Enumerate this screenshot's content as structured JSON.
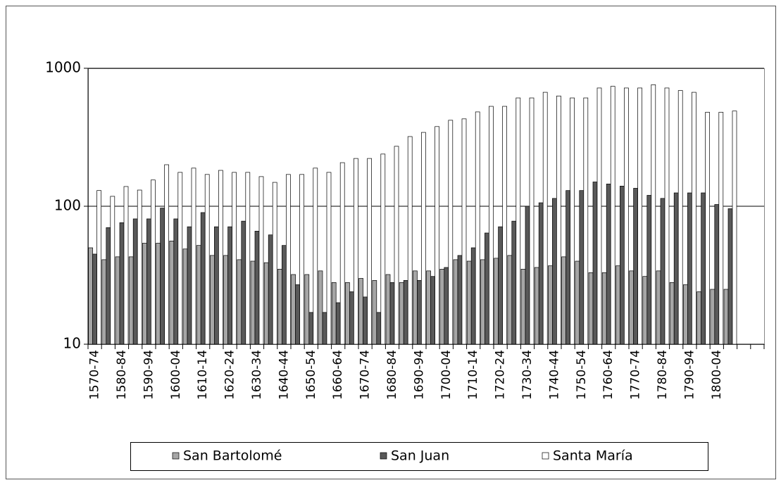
{
  "chart_data": {
    "type": "bar",
    "log_scale": true,
    "grid": true,
    "legend": "bottom",
    "categories": [
      "1570-74",
      null,
      "1580-84",
      null,
      "1590-94",
      null,
      "1600-04",
      null,
      "1610-14",
      null,
      "1620-24",
      null,
      "1630-34",
      null,
      "1640-44",
      null,
      "1650-54",
      null,
      "1660-64",
      null,
      "1670-74",
      null,
      "1680-84",
      null,
      "1690-94",
      null,
      "1700-04",
      null,
      "1710-14",
      null,
      "1720-24",
      null,
      "1730-34",
      null,
      "1740-44",
      null,
      "1750-54",
      null,
      "1760-64",
      null,
      "1770-74",
      null,
      "1780-84",
      null,
      "1790-94",
      null,
      "1800-04",
      null,
      null,
      null
    ],
    "series": [
      {
        "name": "San Bartolomé",
        "color": "#a6a6a6",
        "values": [
          50,
          41,
          43,
          43,
          54,
          54,
          56,
          49,
          52,
          44,
          44,
          41,
          40,
          39,
          35,
          32,
          32,
          34,
          28,
          28,
          30,
          29,
          32,
          28,
          34,
          34,
          35,
          41,
          40,
          41,
          42,
          44,
          35,
          36,
          37,
          43,
          40,
          33,
          33,
          37,
          34,
          31,
          34,
          28,
          27,
          24,
          25,
          25,
          null,
          null
        ]
      },
      {
        "name": "San Juan",
        "color": "#595959",
        "values": [
          45,
          70,
          76,
          81,
          81,
          97,
          81,
          71,
          90,
          71,
          71,
          78,
          66,
          62,
          52,
          27,
          17,
          17,
          20,
          24,
          22,
          17,
          28,
          29,
          29,
          31,
          36,
          44,
          50,
          64,
          71,
          78,
          100,
          106,
          114,
          130,
          130,
          150,
          145,
          140,
          135,
          120,
          114,
          125,
          125,
          125,
          103,
          96,
          null,
          null
        ]
      },
      {
        "name": "Santa María",
        "color": "#ffffff",
        "values": [
          130,
          118,
          139,
          131,
          155,
          200,
          176,
          189,
          170,
          182,
          176,
          176,
          164,
          149,
          170,
          170,
          189,
          176,
          207,
          222,
          222,
          239,
          272,
          320,
          343,
          378,
          420,
          430,
          483,
          530,
          530,
          610,
          610,
          670,
          630,
          610,
          610,
          720,
          740,
          720,
          720,
          760,
          720,
          690,
          670,
          480,
          480,
          490,
          null,
          null
        ]
      }
    ],
    "ylim": [
      10,
      1000
    ],
    "yticks": [
      10,
      100,
      1000
    ]
  }
}
